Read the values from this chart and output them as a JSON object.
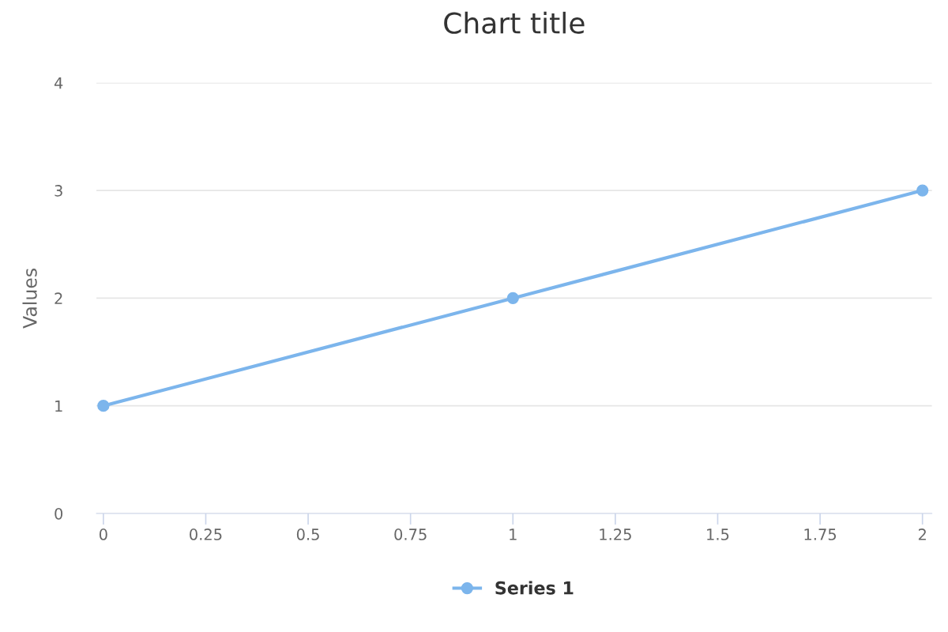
{
  "chart_data": {
    "type": "line",
    "title": "Chart title",
    "ylabel": "Values",
    "x": [
      0,
      1,
      2
    ],
    "series": [
      {
        "name": "Series 1",
        "color": "#7cb5ec",
        "values": [
          1,
          2,
          3
        ]
      }
    ],
    "xlim": [
      -0.017,
      2.023
    ],
    "xticks": [
      0,
      0.25,
      0.5,
      0.75,
      1,
      1.25,
      1.5,
      1.75,
      2
    ],
    "ylim": [
      0,
      4
    ],
    "yticks": [
      0,
      1,
      2,
      3,
      4
    ],
    "grid": "y",
    "legend": "bottom",
    "marker": "circle",
    "line_style": "solid"
  }
}
